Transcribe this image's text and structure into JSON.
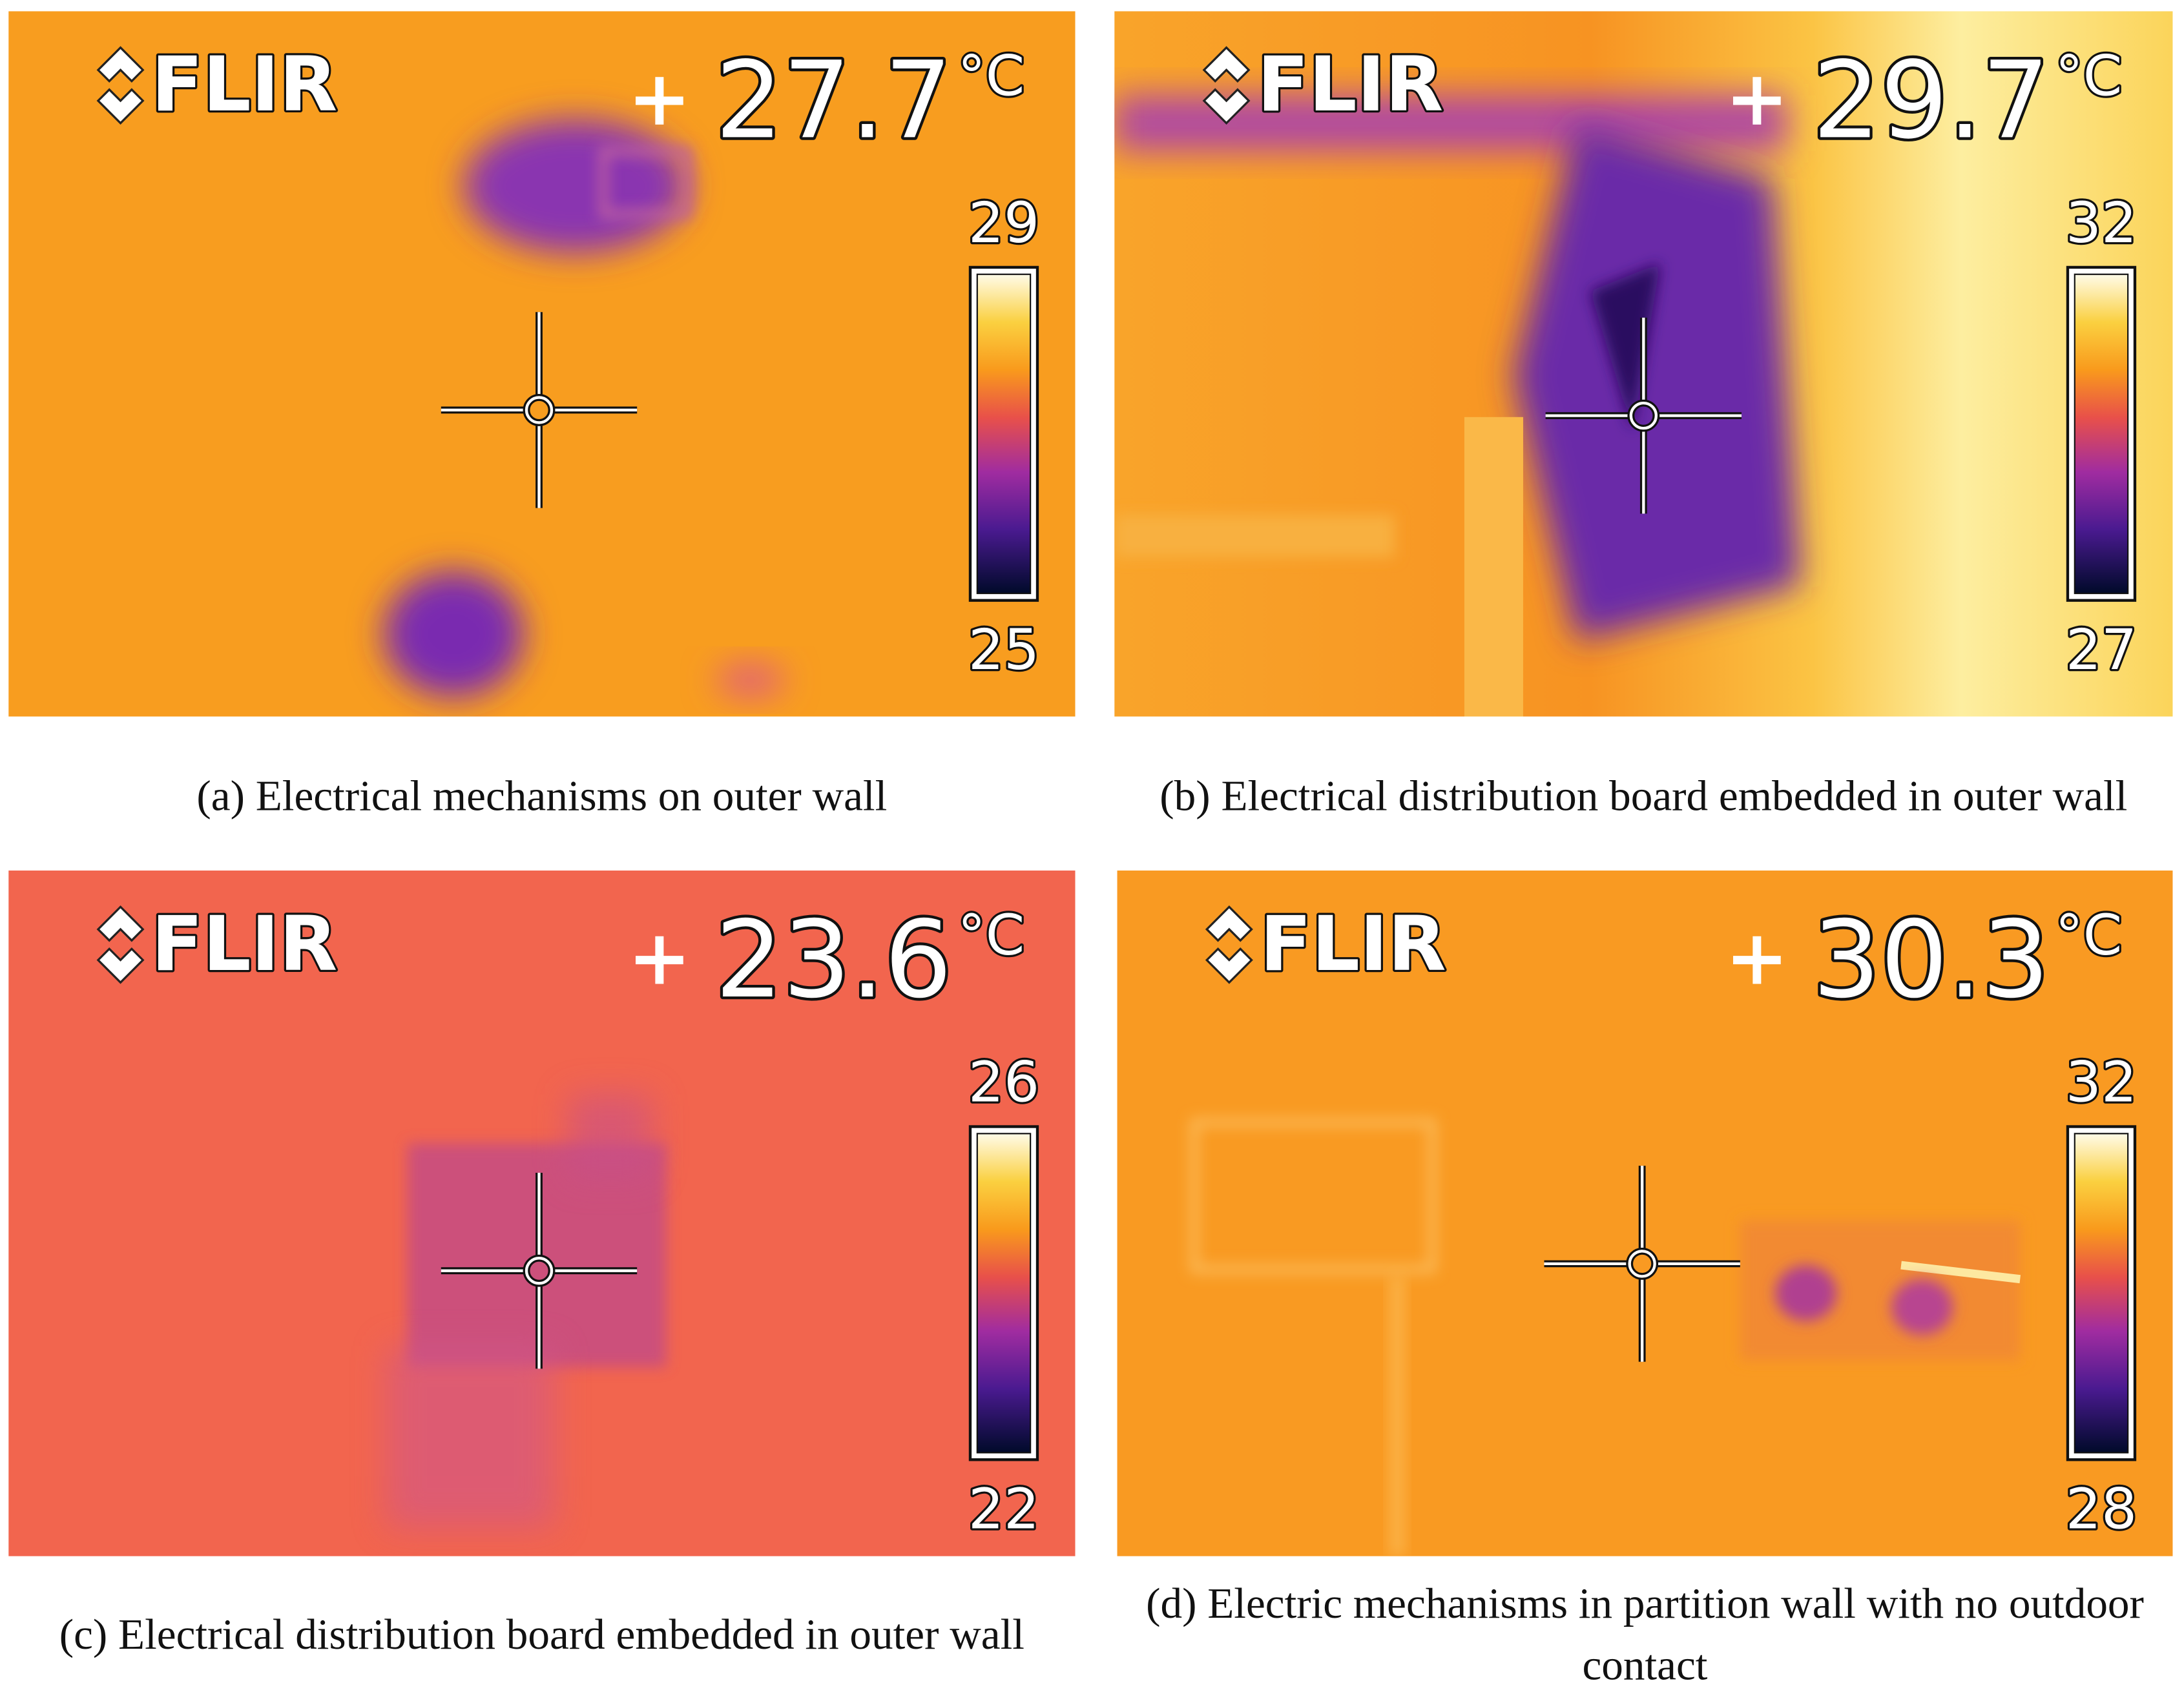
{
  "figure": {
    "panels": [
      {
        "label": "(a)",
        "caption": "Electrical mechanisms on outer wall",
        "logo": "FLIR",
        "reading": "27.7",
        "unit": "°C",
        "scale_max": "29",
        "scale_min": "25"
      },
      {
        "label": "(b)",
        "caption": "Electrical distribution board embedded in outer wall",
        "logo": "FLIR",
        "reading": "29.7",
        "unit": "°C",
        "scale_max": "32",
        "scale_min": "27"
      },
      {
        "label": "(c)",
        "caption": "Electrical distribution board embedded in outer wall",
        "logo": "FLIR",
        "reading": "23.6",
        "unit": "°C",
        "scale_max": "26",
        "scale_min": "22"
      },
      {
        "label": "(d)",
        "caption": "Electric mechanisms in partition wall with no outdoor contact",
        "logo": "FLIR",
        "reading": "30.3",
        "unit": "°C",
        "scale_max": "32",
        "scale_min": "28"
      }
    ]
  }
}
